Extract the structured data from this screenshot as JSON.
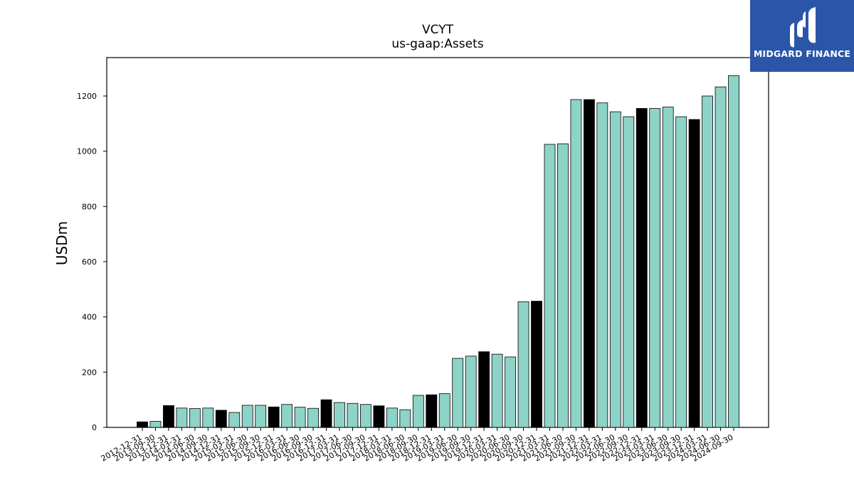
{
  "chart_data": {
    "type": "bar",
    "title": "VCYT",
    "subtitle": "us-gaap:Assets",
    "ylabel": "USDm",
    "xlabel": "",
    "ylim": [
      0,
      1340
    ],
    "yticks": [
      0,
      200,
      400,
      600,
      800,
      1000,
      1200
    ],
    "categories": [
      "2012-12-31",
      "2013-09-30",
      "2013-12-31",
      "2014-03-31",
      "2014-06-30",
      "2014-09-30",
      "2014-12-31",
      "2015-03-31",
      "2015-06-30",
      "2015-09-30",
      "2015-12-31",
      "2016-03-31",
      "2016-06-30",
      "2016-09-30",
      "2016-12-31",
      "2017-03-31",
      "2017-06-30",
      "2017-09-30",
      "2017-12-31",
      "2018-03-31",
      "2018-06-30",
      "2018-09-30",
      "2018-12-31",
      "2019-03-31",
      "2019-06-30",
      "2019-09-30",
      "2019-12-31",
      "2020-03-31",
      "2020-06-30",
      "2020-09-30",
      "2020-12-31",
      "2021-03-31",
      "2021-06-30",
      "2021-09-30",
      "2021-12-31",
      "2022-03-31",
      "2022-06-30",
      "2022-09-30",
      "2022-12-31",
      "2023-03-31",
      "2023-06-30",
      "2023-09-30",
      "2023-12-31",
      "2024-03-31",
      "2024-06-30",
      "2024-09-30"
    ],
    "values": [
      20,
      22,
      79,
      70,
      68,
      70,
      62,
      54,
      80,
      80,
      74,
      83,
      73,
      69,
      100,
      90,
      87,
      83,
      78,
      70,
      64,
      116,
      118,
      122,
      250,
      258,
      274,
      265,
      255,
      455,
      457,
      1025,
      1027,
      1187,
      1187,
      1175,
      1143,
      1125,
      1155,
      1155,
      1160,
      1125,
      1115,
      1200,
      1233,
      1274
    ],
    "highlight": [
      true,
      false,
      true,
      false,
      false,
      false,
      true,
      false,
      false,
      false,
      true,
      false,
      false,
      false,
      true,
      false,
      false,
      false,
      true,
      false,
      false,
      false,
      true,
      false,
      false,
      false,
      true,
      false,
      false,
      false,
      true,
      false,
      false,
      false,
      true,
      false,
      false,
      false,
      true,
      false,
      false,
      false,
      true,
      false,
      false,
      false
    ],
    "colors": {
      "regular": "#8dd3c7",
      "year_end": "#000000",
      "edge": "#000000"
    },
    "legend": "none",
    "grid": false
  },
  "logo": {
    "text": "MIDGARD FINANCE",
    "background": "#2b55a8"
  }
}
